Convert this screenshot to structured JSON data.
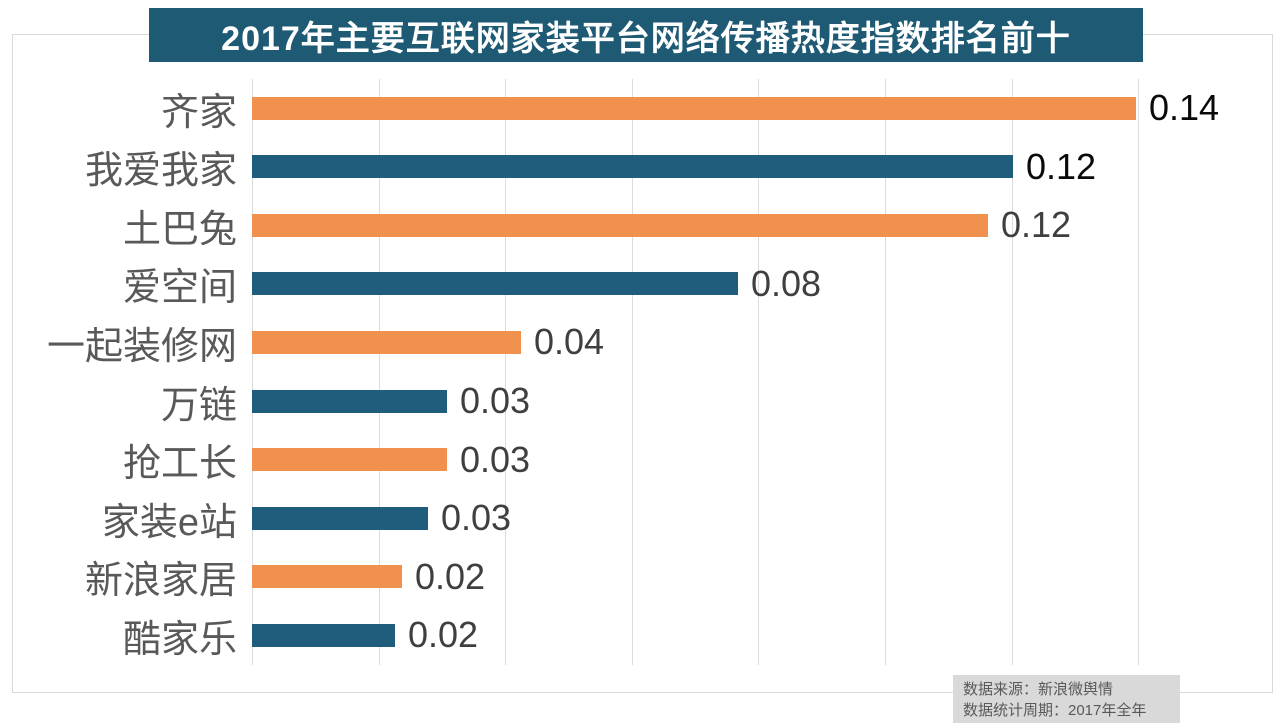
{
  "title": "2017年主要互联网家装平台网络传播热度指数排名前十",
  "chart_data": {
    "type": "bar",
    "orientation": "horizontal",
    "title": "2017年主要互联网家装平台网络传播热度指数排名前十",
    "categories": [
      "齐家",
      "我爱我家",
      "土巴兔",
      "爱空间",
      "一起装修网",
      "万链",
      "抢工长",
      "家装e站",
      "新浪家居",
      "酷家乐"
    ],
    "values": [
      0.14,
      0.12,
      0.12,
      0.08,
      0.04,
      0.03,
      0.03,
      0.03,
      0.02,
      0.02
    ],
    "value_labels": [
      "0.14",
      "0.12",
      "0.12",
      "0.08",
      "0.04",
      "0.03",
      "0.03",
      "0.03",
      "0.02",
      "0.02"
    ],
    "values_precise": [
      0.1397,
      0.1202,
      0.1163,
      0.0768,
      0.0425,
      0.0308,
      0.0308,
      0.0278,
      0.0237,
      0.0226
    ],
    "bar_colors": [
      "#F0914D",
      "#205C7C",
      "#F0914D",
      "#205C7C",
      "#F0914D",
      "#205C7C",
      "#F0914D",
      "#205C7C",
      "#F0914D",
      "#205C7C"
    ],
    "value_label_colors": [
      "#0a0a0a",
      "#0a0a0a",
      "#3f3f3f",
      "#3f3f3f",
      "#3f3f3f",
      "#3f3f3f",
      "#3f3f3f",
      "#3f3f3f",
      "#3f3f3f",
      "#3f3f3f"
    ],
    "xlabel": "",
    "ylabel": "",
    "xlim": [
      0,
      0.162
    ],
    "gridlines": [
      0,
      0.02,
      0.04,
      0.06,
      0.08,
      0.1,
      0.12,
      0.14
    ],
    "grid": true,
    "legend": false,
    "value_label_position": "end-of-bar"
  },
  "footer": {
    "source": "数据来源：新浪微舆情",
    "period": "数据统计周期：2017年全年"
  },
  "colors": {
    "title_bg": "#1E5A74",
    "title_text": "#FFFFFF",
    "bar_orange": "#F0914D",
    "bar_blue": "#205C7C",
    "grid": "#DCDCDC",
    "border": "#D9D9D9",
    "category_text": "#595959",
    "footer_bg": "#D9D9D9",
    "footer_text": "#595959"
  }
}
